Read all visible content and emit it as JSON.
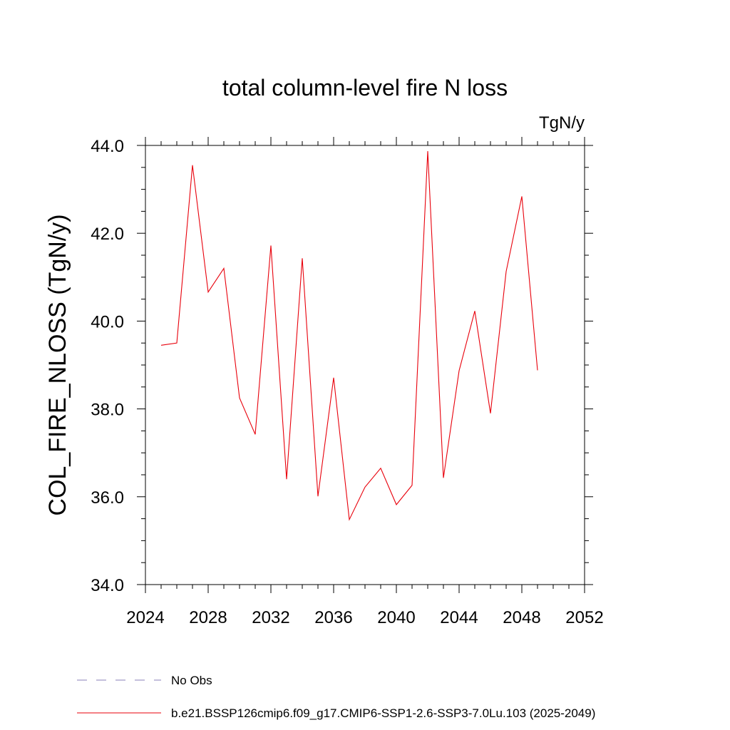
{
  "chart_data": {
    "type": "line",
    "title": "total column-level fire N loss",
    "units": "TgN/y",
    "ylabel": "COL_FIRE_NLOSS  (TgN/y)",
    "xlabel": "",
    "xlim": [
      2024,
      2052
    ],
    "ylim": [
      34.0,
      44.0
    ],
    "x_ticks": [
      2024,
      2028,
      2032,
      2036,
      2040,
      2044,
      2048,
      2052
    ],
    "x_tick_labels": [
      "2024",
      "2028",
      "2032",
      "2036",
      "2040",
      "2044",
      "2048",
      "2052"
    ],
    "y_ticks": [
      34,
      36,
      38,
      40,
      42,
      44
    ],
    "y_tick_labels": [
      "34.0",
      "36.0",
      "38.0",
      "40.0",
      "42.0",
      "44.0"
    ],
    "grid": false,
    "legend_position": "bottom",
    "series": [
      {
        "name": "b.e21.BSSP126cmip6.f09_g17.CMIP6-SSP1-2.6-SSP3-7.0Lu.103 (2025-2049)",
        "color": "#e8000b",
        "x": [
          2025,
          2026,
          2027,
          2028,
          2029,
          2030,
          2031,
          2032,
          2033,
          2034,
          2035,
          2036,
          2037,
          2038,
          2039,
          2040,
          2041,
          2042,
          2043,
          2044,
          2045,
          2046,
          2047,
          2048,
          2049
        ],
        "y": [
          39.45,
          39.5,
          43.55,
          40.66,
          41.2,
          38.25,
          37.42,
          41.72,
          36.4,
          41.43,
          36.01,
          38.71,
          35.48,
          36.22,
          36.65,
          35.82,
          36.26,
          43.87,
          36.43,
          38.87,
          40.23,
          37.9,
          41.13,
          42.84,
          38.88
        ]
      }
    ],
    "legend": [
      {
        "label": "No Obs",
        "color": "#8a7fb8",
        "style": "dashed"
      },
      {
        "label": "b.e21.BSSP126cmip6.f09_g17.CMIP6-SSP1-2.6-SSP3-7.0Lu.103 (2025-2049)",
        "color": "#e8000b",
        "style": "solid"
      }
    ]
  }
}
